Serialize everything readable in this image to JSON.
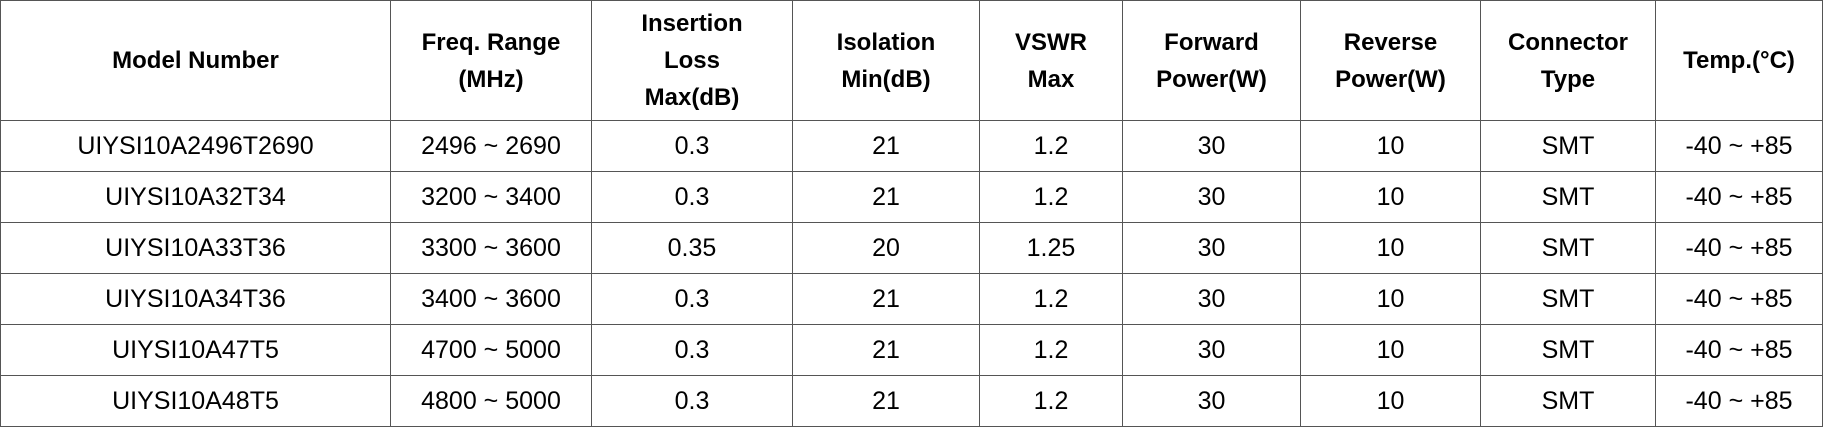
{
  "table": {
    "headers": [
      {
        "key": "model",
        "lines": [
          "Model Number"
        ]
      },
      {
        "key": "freq",
        "lines": [
          "Freq. Range",
          "(MHz)"
        ]
      },
      {
        "key": "insertion_loss",
        "lines": [
          "Insertion",
          "Loss",
          "Max(dB)"
        ]
      },
      {
        "key": "isolation",
        "lines": [
          "Isolation",
          "Min(dB)"
        ]
      },
      {
        "key": "vswr",
        "lines": [
          "VSWR",
          "Max"
        ]
      },
      {
        "key": "forward_power",
        "lines": [
          "Forward",
          "Power(W)"
        ]
      },
      {
        "key": "reverse_power",
        "lines": [
          "Reverse",
          "Power(W)"
        ]
      },
      {
        "key": "connector",
        "lines": [
          "Connector",
          "Type"
        ]
      },
      {
        "key": "temp",
        "lines": [
          "Temp.(°C)"
        ]
      }
    ],
    "rows": [
      [
        "UIYSI10A2496T2690",
        "2496 ~ 2690",
        "0.3",
        "21",
        "1.2",
        "30",
        "10",
        "SMT",
        "-40 ~ +85"
      ],
      [
        "UIYSI10A32T34",
        "3200 ~ 3400",
        "0.3",
        "21",
        "1.2",
        "30",
        "10",
        "SMT",
        "-40 ~ +85"
      ],
      [
        "UIYSI10A33T36",
        "3300 ~ 3600",
        "0.35",
        "20",
        "1.25",
        "30",
        "10",
        "SMT",
        "-40 ~ +85"
      ],
      [
        "UIYSI10A34T36",
        "3400 ~ 3600",
        "0.3",
        "21",
        "1.2",
        "30",
        "10",
        "SMT",
        "-40 ~ +85"
      ],
      [
        "UIYSI10A47T5",
        "4700 ~ 5000",
        "0.3",
        "21",
        "1.2",
        "30",
        "10",
        "SMT",
        "-40 ~ +85"
      ],
      [
        "UIYSI10A48T5",
        "4800 ~ 5000",
        "0.3",
        "21",
        "1.2",
        "30",
        "10",
        "SMT",
        "-40 ~ +85"
      ]
    ]
  }
}
